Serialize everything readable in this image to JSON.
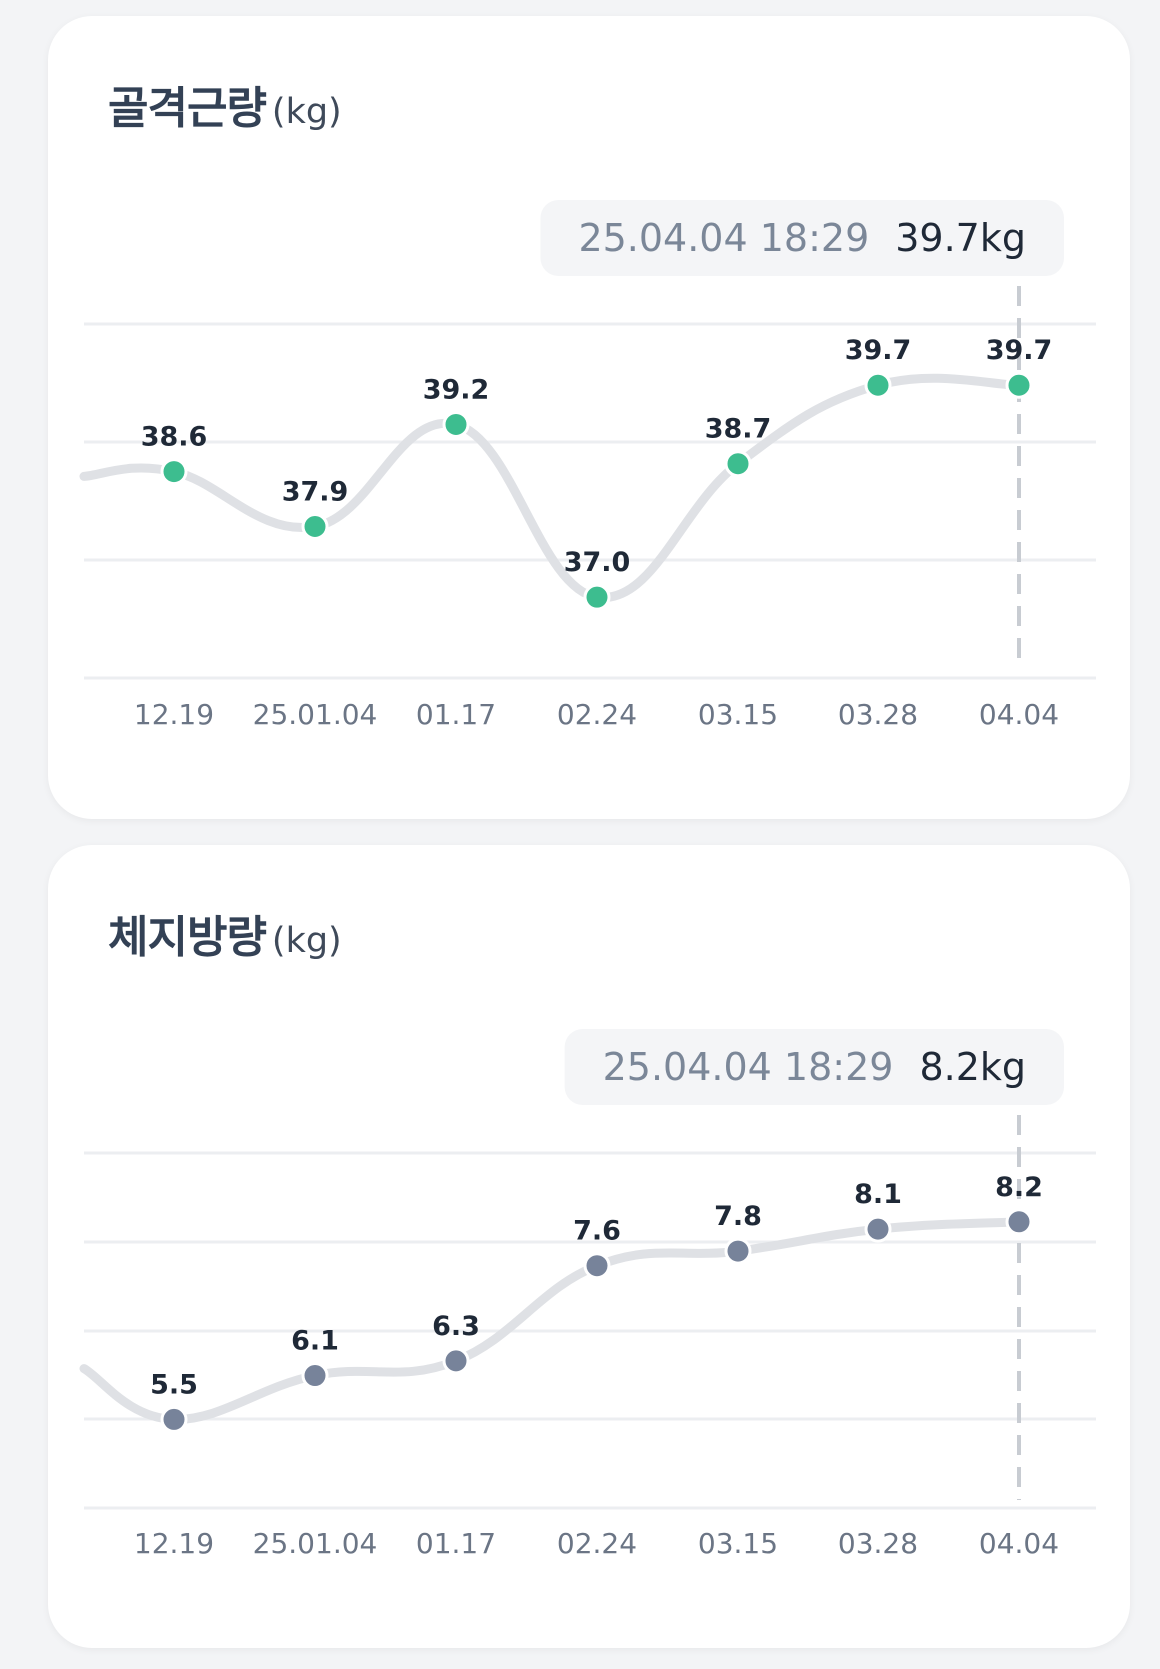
{
  "chart_data": [
    {
      "type": "line",
      "title": "골격근량",
      "unit": "(kg)",
      "categories": [
        "12.19",
        "25.01.04",
        "01.17",
        "02.24",
        "03.15",
        "03.28",
        "04.04"
      ],
      "series": [
        {
          "values": [
            38.6,
            37.9,
            39.2,
            37.0,
            38.7,
            39.7,
            39.7
          ]
        }
      ],
      "marker_color": "#3dbd8f",
      "line_color": "#dfe1e5",
      "tooltip": {
        "date": "25.04.04 18:29",
        "value": "39.7kg"
      },
      "selected_index": 6,
      "grid": true,
      "legend": "none"
    },
    {
      "type": "line",
      "title": "체지방량",
      "unit": "(kg)",
      "categories": [
        "12.19",
        "25.01.04",
        "01.17",
        "02.24",
        "03.15",
        "03.28",
        "04.04"
      ],
      "series": [
        {
          "values": [
            5.5,
            6.1,
            6.3,
            7.6,
            7.8,
            8.1,
            8.2
          ]
        }
      ],
      "marker_color": "#77839a",
      "line_color": "#dfe1e5",
      "tooltip": {
        "date": "25.04.04 18:29",
        "value": "8.2kg"
      },
      "selected_index": 6,
      "grid": true,
      "legend": "none"
    }
  ]
}
